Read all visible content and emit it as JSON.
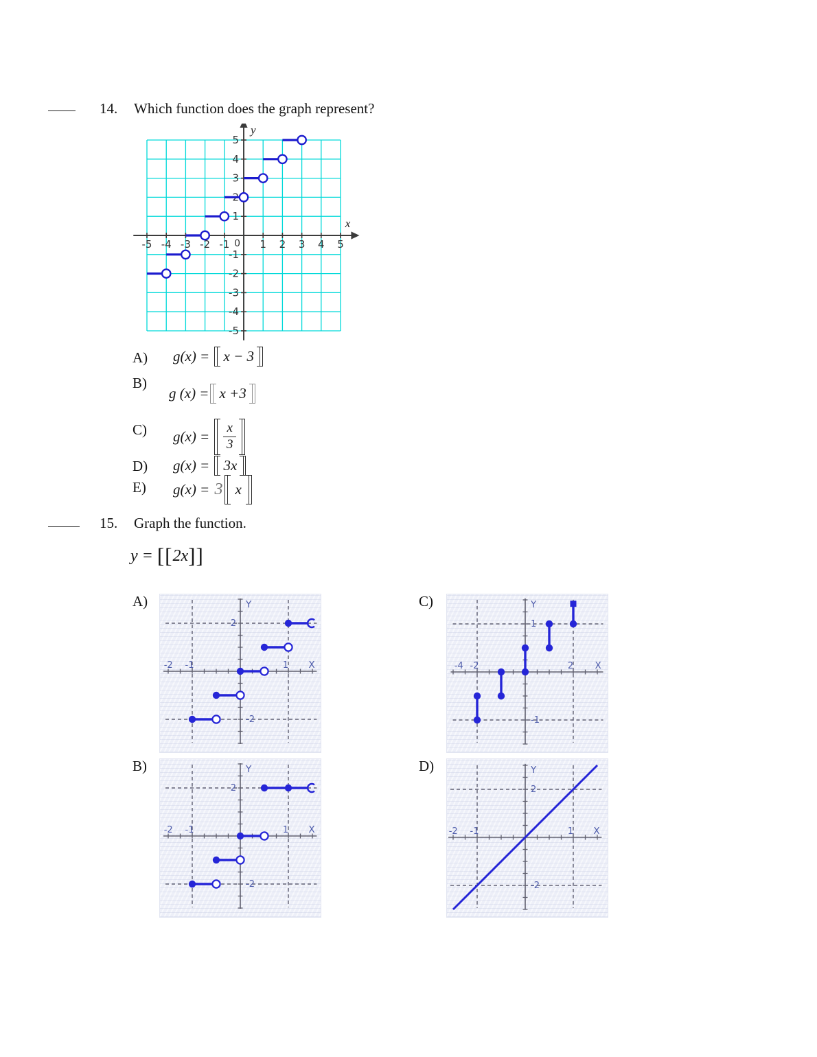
{
  "page": {
    "q14": {
      "number": "14.",
      "question": "Which function does the graph represent?",
      "choices": [
        {
          "label": "A)",
          "pre": "g(x) = ",
          "inner": "x − 3",
          "kind": "plain"
        },
        {
          "label": "B)",
          "pre": "g (x) =",
          "inner": "x +3",
          "kind": "plain"
        },
        {
          "label": "C)",
          "pre": "g(x) = ",
          "num": "x",
          "den": "3",
          "kind": "fraction"
        },
        {
          "label": "D)",
          "pre": "g(x) = ",
          "inner": "3x",
          "kind": "plain"
        },
        {
          "label": "E)",
          "pre": "g(x) = ",
          "coef": "3",
          "inner": "x",
          "kind": "coef"
        }
      ]
    },
    "q15": {
      "number": "15.",
      "question": "Graph the function.",
      "formula_parts": {
        "lhs": "y = ",
        "open": "[[",
        "inner": "2x",
        "close": "]]"
      },
      "options": {
        "a": "A)",
        "b": "B)",
        "c": "C)",
        "d": "D)"
      }
    }
  },
  "chart_data": [
    {
      "type": "step",
      "name": "q14-graph",
      "xlabel": "x",
      "ylabel": "y",
      "xlim": [
        -5.7,
        5.62
      ],
      "ylim": [
        -5.5,
        5.72
      ],
      "grid": {
        "x0": -5,
        "x1": 5,
        "y0": -5,
        "y1": 5,
        "step": 1,
        "color": "#00d9d9"
      },
      "x_ticks": [
        -5,
        -4,
        -3,
        -2,
        -1,
        1,
        2,
        3,
        4,
        5
      ],
      "y_ticks": [
        5,
        4,
        3,
        2,
        1,
        -1,
        -2,
        -3,
        -4,
        -5
      ],
      "origin_label": "0",
      "colors": {
        "line": "#1b1bce",
        "axis": "#3b3b3b",
        "label": "#333333"
      },
      "segments": [
        {
          "x1": -5,
          "x2": -4,
          "y": -2,
          "left": "none",
          "right": "open"
        },
        {
          "x1": -4,
          "x2": -3,
          "y": -1,
          "left": "none",
          "right": "open"
        },
        {
          "x1": -3,
          "x2": -2,
          "y": 0,
          "left": "none",
          "right": "open"
        },
        {
          "x1": -2,
          "x2": -1,
          "y": 1,
          "left": "none",
          "right": "open"
        },
        {
          "x1": -1,
          "x2": 0,
          "y": 2,
          "left": "none",
          "right": "open"
        },
        {
          "x1": 0,
          "x2": 1,
          "y": 3,
          "left": "none",
          "right": "open"
        },
        {
          "x1": 1,
          "x2": 2,
          "y": 4,
          "left": "none",
          "right": "open"
        },
        {
          "x1": 2,
          "x2": 3,
          "y": 5,
          "left": "none",
          "right": "open"
        }
      ]
    },
    {
      "type": "step",
      "name": "q15-option-A",
      "option": "A",
      "xlabel": "X",
      "ylabel": "Y",
      "xlim": [
        -1.6,
        1.52
      ],
      "ylim": [
        -3.03,
        3.03
      ],
      "dashed_x": [
        -1,
        1
      ],
      "dashed_y": [
        2,
        -2
      ],
      "x_labels": [
        {
          "t": "-2",
          "x": -1.44
        },
        {
          "t": "-1",
          "x": -1
        },
        {
          "t": "1",
          "x": 1
        }
      ],
      "y_labels": [
        {
          "t": "2",
          "y": 2,
          "side": "left"
        },
        {
          "t": "-2",
          "y": -2,
          "side": "right"
        }
      ],
      "segments": [
        {
          "x1": -1,
          "x2": -0.5,
          "y": -2,
          "left": "closed",
          "right": "open"
        },
        {
          "x1": -0.5,
          "x2": 0,
          "y": -1,
          "left": "closed",
          "right": "open"
        },
        {
          "x1": 0,
          "x2": 0.5,
          "y": 0,
          "left": "closed",
          "right": "open"
        },
        {
          "x1": 0.5,
          "x2": 1,
          "y": 1,
          "left": "closed",
          "right": "open"
        },
        {
          "x1": 1,
          "x2": 1.4,
          "y": 2,
          "left": "closed",
          "right": "paren"
        }
      ]
    },
    {
      "type": "vstep",
      "name": "q15-option-C",
      "option": "C",
      "xlabel": "X",
      "ylabel": "Y",
      "xlim": [
        -3.1,
        3.1
      ],
      "ylim": [
        -1.5,
        1.53
      ],
      "dashed_x": [
        -2,
        2
      ],
      "dashed_y": [
        1,
        -1
      ],
      "x_labels": [
        {
          "t": "-4",
          "x": -2.65
        },
        {
          "t": "-2",
          "x": -2
        },
        {
          "t": "2",
          "x": 2
        }
      ],
      "y_labels": [
        {
          "t": "1",
          "y": 1,
          "side": "right"
        },
        {
          "t": "-1",
          "y": -1,
          "side": "right"
        }
      ],
      "vsegments": [
        {
          "x": -2,
          "y1": -1,
          "y2": -0.5
        },
        {
          "x": -1,
          "y1": -0.5,
          "y2": 0
        },
        {
          "x": 0,
          "y1": 0,
          "y2": 0.5
        },
        {
          "x": 1,
          "y1": 0.5,
          "y2": 1
        },
        {
          "x": 2,
          "y1": 1,
          "y2": 1.42,
          "cap": "square"
        }
      ]
    },
    {
      "type": "step",
      "name": "q15-option-B",
      "option": "B",
      "xlabel": "X",
      "ylabel": "Y",
      "xlim": [
        -1.6,
        1.52
      ],
      "ylim": [
        -3.03,
        3.03
      ],
      "dashed_x": [
        -1,
        1
      ],
      "dashed_y": [
        2,
        -2
      ],
      "x_labels": [
        {
          "t": "-2",
          "x": -1.44
        },
        {
          "t": "-1",
          "x": -1
        },
        {
          "t": "1",
          "x": 1
        }
      ],
      "y_labels": [
        {
          "t": "2",
          "y": 2,
          "side": "left"
        },
        {
          "t": "-2",
          "y": -2,
          "side": "right"
        }
      ],
      "segments": [
        {
          "x1": -1,
          "x2": -0.5,
          "y": -2,
          "left": "closed",
          "right": "open"
        },
        {
          "x1": -0.5,
          "x2": 0,
          "y": -1,
          "left": "closed",
          "right": "open"
        },
        {
          "x1": 0,
          "x2": 0.5,
          "y": 0,
          "left": "closed",
          "right": "open"
        },
        {
          "x1": 0.5,
          "x2": 1.4,
          "y": 2,
          "left": "closed",
          "right": "paren",
          "dots": [
            1
          ]
        }
      ]
    },
    {
      "type": "line",
      "name": "q15-option-D",
      "option": "D",
      "xlabel": "X",
      "ylabel": "Y",
      "xlim": [
        -1.6,
        1.52
      ],
      "ylim": [
        -3.0,
        3.06
      ],
      "dashed_x": [
        -1,
        1
      ],
      "dashed_y": [
        2,
        -2
      ],
      "x_labels": [
        {
          "t": "-2",
          "x": -1.44
        },
        {
          "t": "-1",
          "x": -1
        },
        {
          "t": "1",
          "x": 1
        }
      ],
      "y_labels": [
        {
          "t": "2",
          "y": 2,
          "side": "right"
        },
        {
          "t": "-2",
          "y": -2,
          "side": "right"
        }
      ],
      "line": {
        "x1": -1.5,
        "y1": -3.0,
        "x2": 1.5,
        "y2": 3.0,
        "slope": 2,
        "intercept": 0
      }
    }
  ]
}
